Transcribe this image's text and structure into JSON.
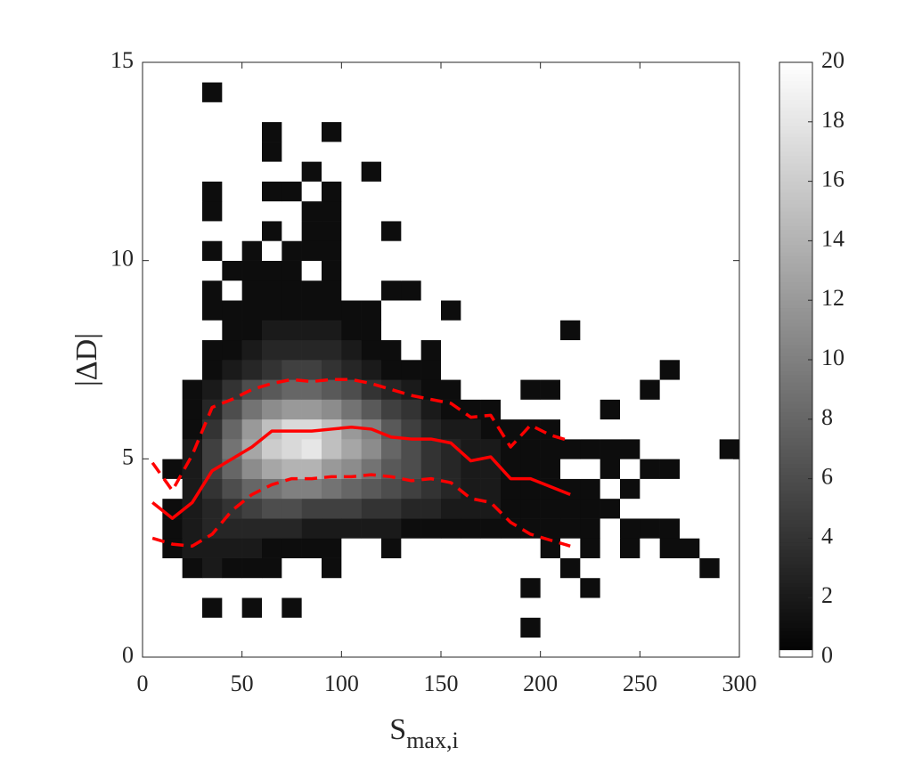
{
  "chart_data": {
    "type": "heatmap",
    "x_label": {
      "main": "S",
      "sub": "max,i"
    },
    "y_label": "|ΔD|",
    "xlim": [
      0,
      300
    ],
    "ylim": [
      0,
      15
    ],
    "xticks": [
      0,
      50,
      100,
      150,
      200,
      250,
      300
    ],
    "yticks": [
      0,
      5,
      10,
      15
    ],
    "clim": [
      0,
      20
    ],
    "cticks": [
      0,
      2,
      4,
      6,
      8,
      10,
      12,
      14,
      16,
      18,
      20
    ],
    "xbins": [
      0,
      10,
      20,
      30,
      40,
      50,
      60,
      70,
      80,
      90,
      100,
      110,
      120,
      130,
      140,
      150,
      160,
      170,
      180,
      190,
      200,
      210,
      220,
      230,
      240,
      250,
      260,
      270,
      280,
      290,
      300
    ],
    "ybins": [
      0,
      0.5,
      1,
      1.5,
      2,
      2.5,
      3,
      3.5,
      4,
      4.5,
      5,
      5.5,
      6,
      6.5,
      7,
      7.5,
      8,
      8.5,
      9,
      9.5,
      10,
      10.5,
      11,
      11.5,
      12,
      12.5,
      13,
      13.5,
      14,
      14.5,
      15
    ],
    "z": [
      [
        0,
        0,
        0,
        0,
        0,
        0,
        0,
        0,
        0,
        0,
        0,
        0,
        0,
        0,
        0,
        0,
        0,
        0,
        0,
        0,
        0,
        0,
        0,
        0,
        0,
        0,
        0,
        0,
        0,
        0
      ],
      [
        0,
        0,
        0,
        0,
        0,
        0,
        0,
        0,
        0,
        0,
        0,
        0,
        0,
        0,
        0,
        0,
        0,
        0,
        0,
        1,
        0,
        0,
        0,
        0,
        0,
        0,
        0,
        0,
        0,
        0
      ],
      [
        0,
        0,
        0,
        1,
        0,
        1,
        0,
        1,
        0,
        0,
        0,
        0,
        0,
        0,
        0,
        0,
        0,
        0,
        0,
        0,
        0,
        0,
        0,
        0,
        0,
        0,
        0,
        0,
        0,
        0
      ],
      [
        0,
        0,
        0,
        0,
        0,
        0,
        0,
        0,
        0,
        0,
        0,
        0,
        0,
        0,
        0,
        0,
        0,
        0,
        0,
        1,
        0,
        0,
        1,
        0,
        0,
        0,
        0,
        0,
        0,
        0
      ],
      [
        0,
        0,
        1,
        2,
        1,
        1,
        1,
        0,
        0,
        1,
        0,
        0,
        0,
        0,
        0,
        0,
        0,
        0,
        0,
        0,
        0,
        1,
        0,
        0,
        0,
        0,
        0,
        0,
        1,
        0
      ],
      [
        0,
        1,
        2,
        2,
        2,
        2,
        1,
        1,
        1,
        1,
        0,
        0,
        1,
        0,
        0,
        0,
        0,
        0,
        0,
        0,
        1,
        0,
        1,
        0,
        1,
        0,
        1,
        1,
        0,
        0
      ],
      [
        0,
        1,
        2,
        3,
        3,
        3,
        3,
        3,
        2,
        2,
        2,
        2,
        2,
        1,
        1,
        1,
        1,
        1,
        1,
        1,
        1,
        1,
        1,
        0,
        1,
        1,
        1,
        0,
        0,
        0
      ],
      [
        0,
        1,
        2,
        3,
        4,
        5,
        6,
        6,
        5,
        5,
        5,
        4,
        4,
        3,
        3,
        2,
        2,
        2,
        1,
        1,
        1,
        1,
        1,
        1,
        0,
        0,
        0,
        0,
        0,
        0
      ],
      [
        0,
        0,
        2,
        4,
        6,
        8,
        9,
        10,
        10,
        9,
        8,
        7,
        6,
        5,
        4,
        3,
        2,
        2,
        1,
        1,
        1,
        1,
        1,
        0,
        1,
        0,
        0,
        0,
        0,
        0
      ],
      [
        0,
        1,
        2,
        5,
        8,
        11,
        13,
        14,
        14,
        12,
        11,
        9,
        7,
        6,
        4,
        3,
        2,
        2,
        1,
        1,
        1,
        0,
        0,
        1,
        0,
        1,
        1,
        0,
        0,
        0
      ],
      [
        0,
        0,
        2,
        5,
        9,
        13,
        16,
        17,
        18,
        15,
        13,
        11,
        8,
        6,
        4,
        3,
        2,
        2,
        1,
        1,
        1,
        1,
        1,
        1,
        1,
        0,
        0,
        0,
        0,
        1
      ],
      [
        0,
        0,
        1,
        4,
        8,
        12,
        15,
        17,
        17,
        15,
        12,
        10,
        7,
        5,
        3,
        2,
        2,
        1,
        1,
        1,
        1,
        0,
        0,
        0,
        0,
        0,
        0,
        0,
        0,
        0
      ],
      [
        0,
        0,
        1,
        3,
        6,
        9,
        11,
        12,
        12,
        11,
        9,
        7,
        5,
        4,
        2,
        1,
        1,
        1,
        0,
        0,
        0,
        0,
        0,
        1,
        0,
        0,
        0,
        0,
        0,
        0
      ],
      [
        0,
        0,
        1,
        2,
        4,
        6,
        7,
        8,
        8,
        7,
        6,
        4,
        3,
        2,
        1,
        1,
        0,
        0,
        0,
        1,
        1,
        0,
        0,
        0,
        0,
        1,
        0,
        0,
        0,
        0
      ],
      [
        0,
        0,
        0,
        1,
        2,
        3,
        4,
        5,
        5,
        4,
        3,
        2,
        1,
        1,
        1,
        0,
        0,
        0,
        0,
        0,
        0,
        0,
        0,
        0,
        0,
        0,
        1,
        0,
        0,
        0
      ],
      [
        0,
        0,
        0,
        1,
        1,
        2,
        3,
        3,
        3,
        3,
        2,
        1,
        1,
        0,
        1,
        0,
        0,
        0,
        0,
        0,
        0,
        0,
        0,
        0,
        0,
        0,
        0,
        0,
        0,
        0
      ],
      [
        0,
        0,
        0,
        0,
        1,
        1,
        2,
        2,
        2,
        2,
        1,
        1,
        0,
        0,
        0,
        0,
        0,
        0,
        0,
        0,
        0,
        1,
        0,
        0,
        0,
        0,
        0,
        0,
        0,
        0
      ],
      [
        0,
        0,
        0,
        1,
        1,
        1,
        1,
        1,
        1,
        1,
        1,
        1,
        0,
        0,
        0,
        1,
        0,
        0,
        0,
        0,
        0,
        0,
        0,
        0,
        0,
        0,
        0,
        0,
        0,
        0
      ],
      [
        0,
        0,
        0,
        1,
        0,
        1,
        1,
        1,
        1,
        1,
        0,
        0,
        1,
        1,
        0,
        0,
        0,
        0,
        0,
        0,
        0,
        0,
        0,
        0,
        0,
        0,
        0,
        0,
        0,
        0
      ],
      [
        0,
        0,
        0,
        0,
        1,
        1,
        1,
        1,
        0,
        1,
        0,
        0,
        0,
        0,
        0,
        0,
        0,
        0,
        0,
        0,
        0,
        0,
        0,
        0,
        0,
        0,
        0,
        0,
        0,
        0
      ],
      [
        0,
        0,
        0,
        1,
        0,
        1,
        0,
        1,
        1,
        1,
        0,
        0,
        0,
        0,
        0,
        0,
        0,
        0,
        0,
        0,
        0,
        0,
        0,
        0,
        0,
        0,
        0,
        0,
        0,
        0
      ],
      [
        0,
        0,
        0,
        0,
        0,
        0,
        1,
        0,
        1,
        1,
        0,
        0,
        1,
        0,
        0,
        0,
        0,
        0,
        0,
        0,
        0,
        0,
        0,
        0,
        0,
        0,
        0,
        0,
        0,
        0
      ],
      [
        0,
        0,
        0,
        1,
        0,
        0,
        0,
        0,
        1,
        1,
        0,
        0,
        0,
        0,
        0,
        0,
        0,
        0,
        0,
        0,
        0,
        0,
        0,
        0,
        0,
        0,
        0,
        0,
        0,
        0
      ],
      [
        0,
        0,
        0,
        1,
        0,
        0,
        1,
        1,
        0,
        1,
        0,
        0,
        0,
        0,
        0,
        0,
        0,
        0,
        0,
        0,
        0,
        0,
        0,
        0,
        0,
        0,
        0,
        0,
        0,
        0
      ],
      [
        0,
        0,
        0,
        0,
        0,
        0,
        0,
        0,
        1,
        0,
        0,
        1,
        0,
        0,
        0,
        0,
        0,
        0,
        0,
        0,
        0,
        0,
        0,
        0,
        0,
        0,
        0,
        0,
        0,
        0
      ],
      [
        0,
        0,
        0,
        0,
        0,
        0,
        1,
        0,
        0,
        0,
        0,
        0,
        0,
        0,
        0,
        0,
        0,
        0,
        0,
        0,
        0,
        0,
        0,
        0,
        0,
        0,
        0,
        0,
        0,
        0
      ],
      [
        0,
        0,
        0,
        0,
        0,
        0,
        1,
        0,
        0,
        1,
        0,
        0,
        0,
        0,
        0,
        0,
        0,
        0,
        0,
        0,
        0,
        0,
        0,
        0,
        0,
        0,
        0,
        0,
        0,
        0
      ],
      [
        0,
        0,
        0,
        0,
        0,
        0,
        0,
        0,
        0,
        0,
        0,
        0,
        0,
        0,
        0,
        0,
        0,
        0,
        0,
        0,
        0,
        0,
        0,
        0,
        0,
        0,
        0,
        0,
        0,
        0
      ],
      [
        0,
        0,
        0,
        1,
        0,
        0,
        0,
        0,
        0,
        0,
        0,
        0,
        0,
        0,
        0,
        0,
        0,
        0,
        0,
        0,
        0,
        0,
        0,
        0,
        0,
        0,
        0,
        0,
        0,
        0
      ],
      [
        0,
        0,
        0,
        0,
        0,
        0,
        0,
        0,
        0,
        0,
        0,
        0,
        0,
        0,
        0,
        0,
        0,
        0,
        0,
        0,
        0,
        0,
        0,
        0,
        0,
        0,
        0,
        0,
        0,
        0
      ]
    ],
    "x": [
      5,
      15,
      25,
      35,
      45,
      55,
      65,
      75,
      85,
      95,
      105,
      115,
      125,
      135,
      145,
      155,
      165,
      175,
      185,
      195,
      205,
      215
    ],
    "series": [
      {
        "color": "#ff0000",
        "dashed": false,
        "values": [
          3.9,
          3.5,
          3.9,
          4.7,
          5.0,
          5.3,
          5.7,
          5.7,
          5.7,
          5.75,
          5.8,
          5.75,
          5.55,
          5.5,
          5.5,
          5.4,
          4.95,
          5.05,
          4.5,
          4.5,
          4.3,
          4.1
        ]
      },
      {
        "color": "#ff0000",
        "dashed": true,
        "values": [
          4.9,
          4.2,
          5.1,
          6.3,
          6.5,
          6.75,
          6.9,
          7.0,
          6.95,
          7.0,
          7.0,
          6.9,
          6.75,
          6.6,
          6.5,
          6.4,
          6.05,
          6.1,
          5.3,
          5.85,
          5.6,
          5.45
        ]
      },
      {
        "color": "#ff0000",
        "dashed": true,
        "values": [
          3.0,
          2.85,
          2.8,
          3.1,
          3.7,
          4.1,
          4.35,
          4.5,
          4.5,
          4.55,
          4.55,
          4.6,
          4.55,
          4.45,
          4.5,
          4.4,
          4.0,
          3.9,
          3.4,
          3.1,
          2.95,
          2.8
        ]
      }
    ]
  }
}
